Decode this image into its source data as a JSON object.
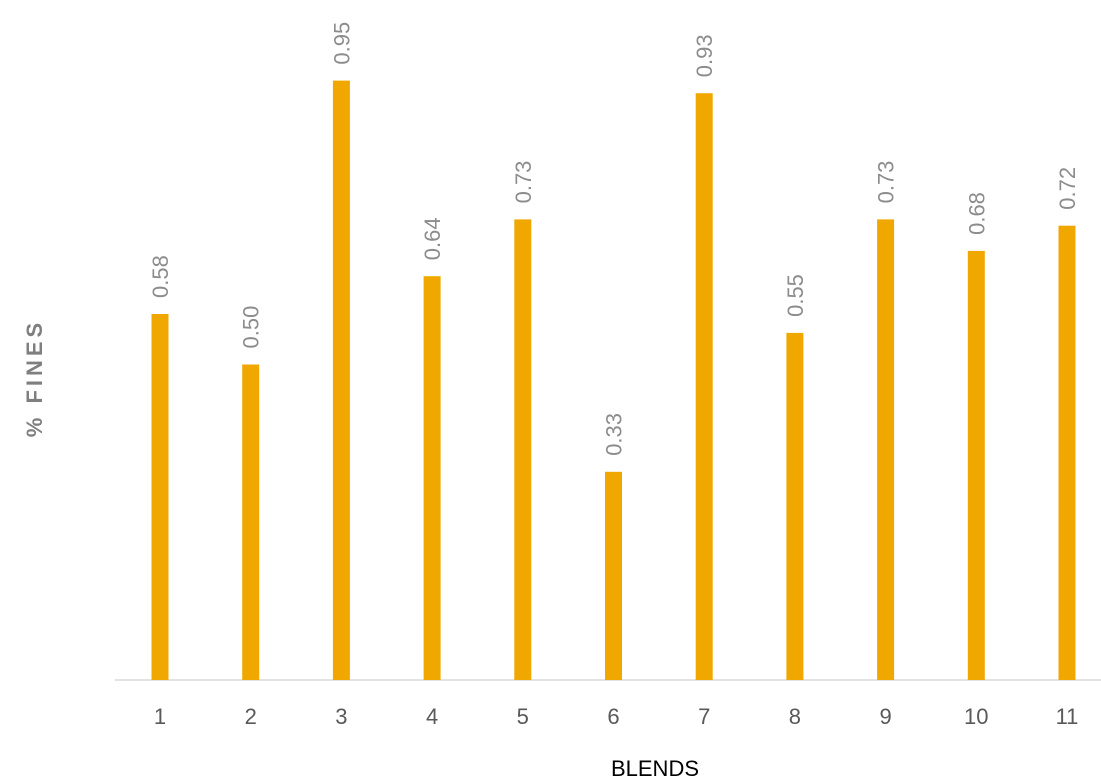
{
  "chart_data": {
    "type": "bar",
    "title": "",
    "xlabel": "BLENDS",
    "ylabel": "% FINES",
    "categories": [
      "1",
      "2",
      "3",
      "4",
      "5",
      "6",
      "7",
      "8",
      "9",
      "10",
      "11"
    ],
    "values": [
      0.58,
      0.5,
      0.95,
      0.64,
      0.73,
      0.33,
      0.93,
      0.55,
      0.73,
      0.68,
      0.72
    ],
    "data_labels": [
      "0.58",
      "0.50",
      "0.95",
      "0.64",
      "0.73",
      "0.33",
      "0.93",
      "0.55",
      "0.73",
      "0.68",
      "0.72"
    ],
    "ylim": [
      0,
      1
    ],
    "grid": false,
    "legend": "none",
    "bar_color": "#F0A800",
    "axis_color": "#d9d9d9",
    "data_label_color": "#8c8c8c",
    "tick_label_color": "#595959",
    "ylabel_color": "#7f7f7f"
  }
}
